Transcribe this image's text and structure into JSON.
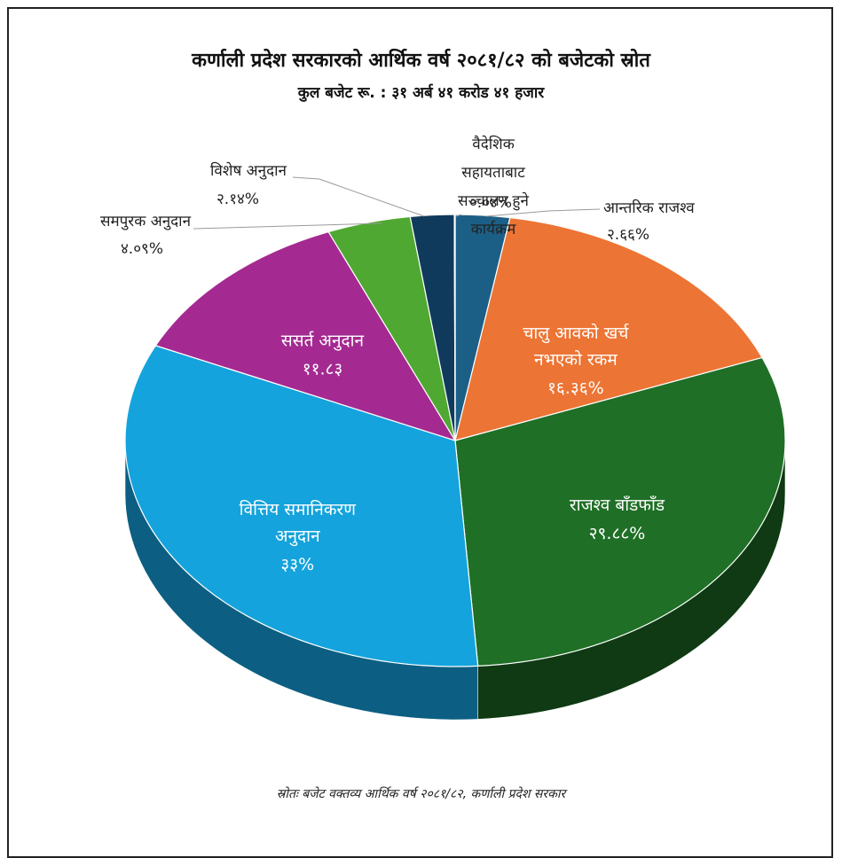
{
  "chart_data": {
    "type": "pie",
    "title": "कर्णाली प्रदेश सरकारको आर्थिक वर्ष २०८१/८२ को बजेटको स्रोत",
    "subtitle": "कुल बजेट रू. : ३१ अर्ब ४१ करोड ४१ हजार",
    "slices": [
      {
        "label": "आन्तरिक राजश्व",
        "value_label": "२.६६%",
        "value": 2.66,
        "color": "#1c5f86",
        "side": "#123e58",
        "label_pos": "outside"
      },
      {
        "label": "चालु आवको खर्च नभएको रकम",
        "value_label": "१६.३६%",
        "value": 16.36,
        "color": "#ec7434",
        "side": "#a24c1e",
        "label_pos": "inside"
      },
      {
        "label": "राजश्व बाँडफाँड",
        "value_label": "२९.८८%",
        "value": 29.88,
        "color": "#1f6f26",
        "side": "#0f3a13",
        "label_pos": "inside"
      },
      {
        "label": "वित्तिय समानिकरण अनुदान",
        "value_label": "३३%",
        "value": 33,
        "color": "#14a3dc",
        "side": "#0c5f82",
        "label_pos": "inside"
      },
      {
        "label": "ससर्त अनुदान",
        "value_label": "११.८३",
        "value": 11.83,
        "color": "#a42a91",
        "side": "#6a1a5e",
        "label_pos": "inside"
      },
      {
        "label": "समपुरक अनुदान",
        "value_label": "४.०९%",
        "value": 4.09,
        "color": "#4fa832",
        "side": "#2f6a1e",
        "label_pos": "outside"
      },
      {
        "label": "विशेष अनुदान",
        "value_label": "२.१४%",
        "value": 2.14,
        "color": "#103a5c",
        "side": "#09223a",
        "label_pos": "outside"
      },
      {
        "label": "वैदेशिक सहायताबाट सञ्चालन हुने कार्यक्रम",
        "value_label": "०.०४%",
        "value": 0.04,
        "color": "#0e3556",
        "side": "#081f33",
        "label_pos": "outside"
      }
    ],
    "legend": "none"
  },
  "source_text": "स्रोतः बजेट वक्तव्य आर्थिक वर्ष २०८१/८२, कर्णाली प्रदेश सरकार"
}
